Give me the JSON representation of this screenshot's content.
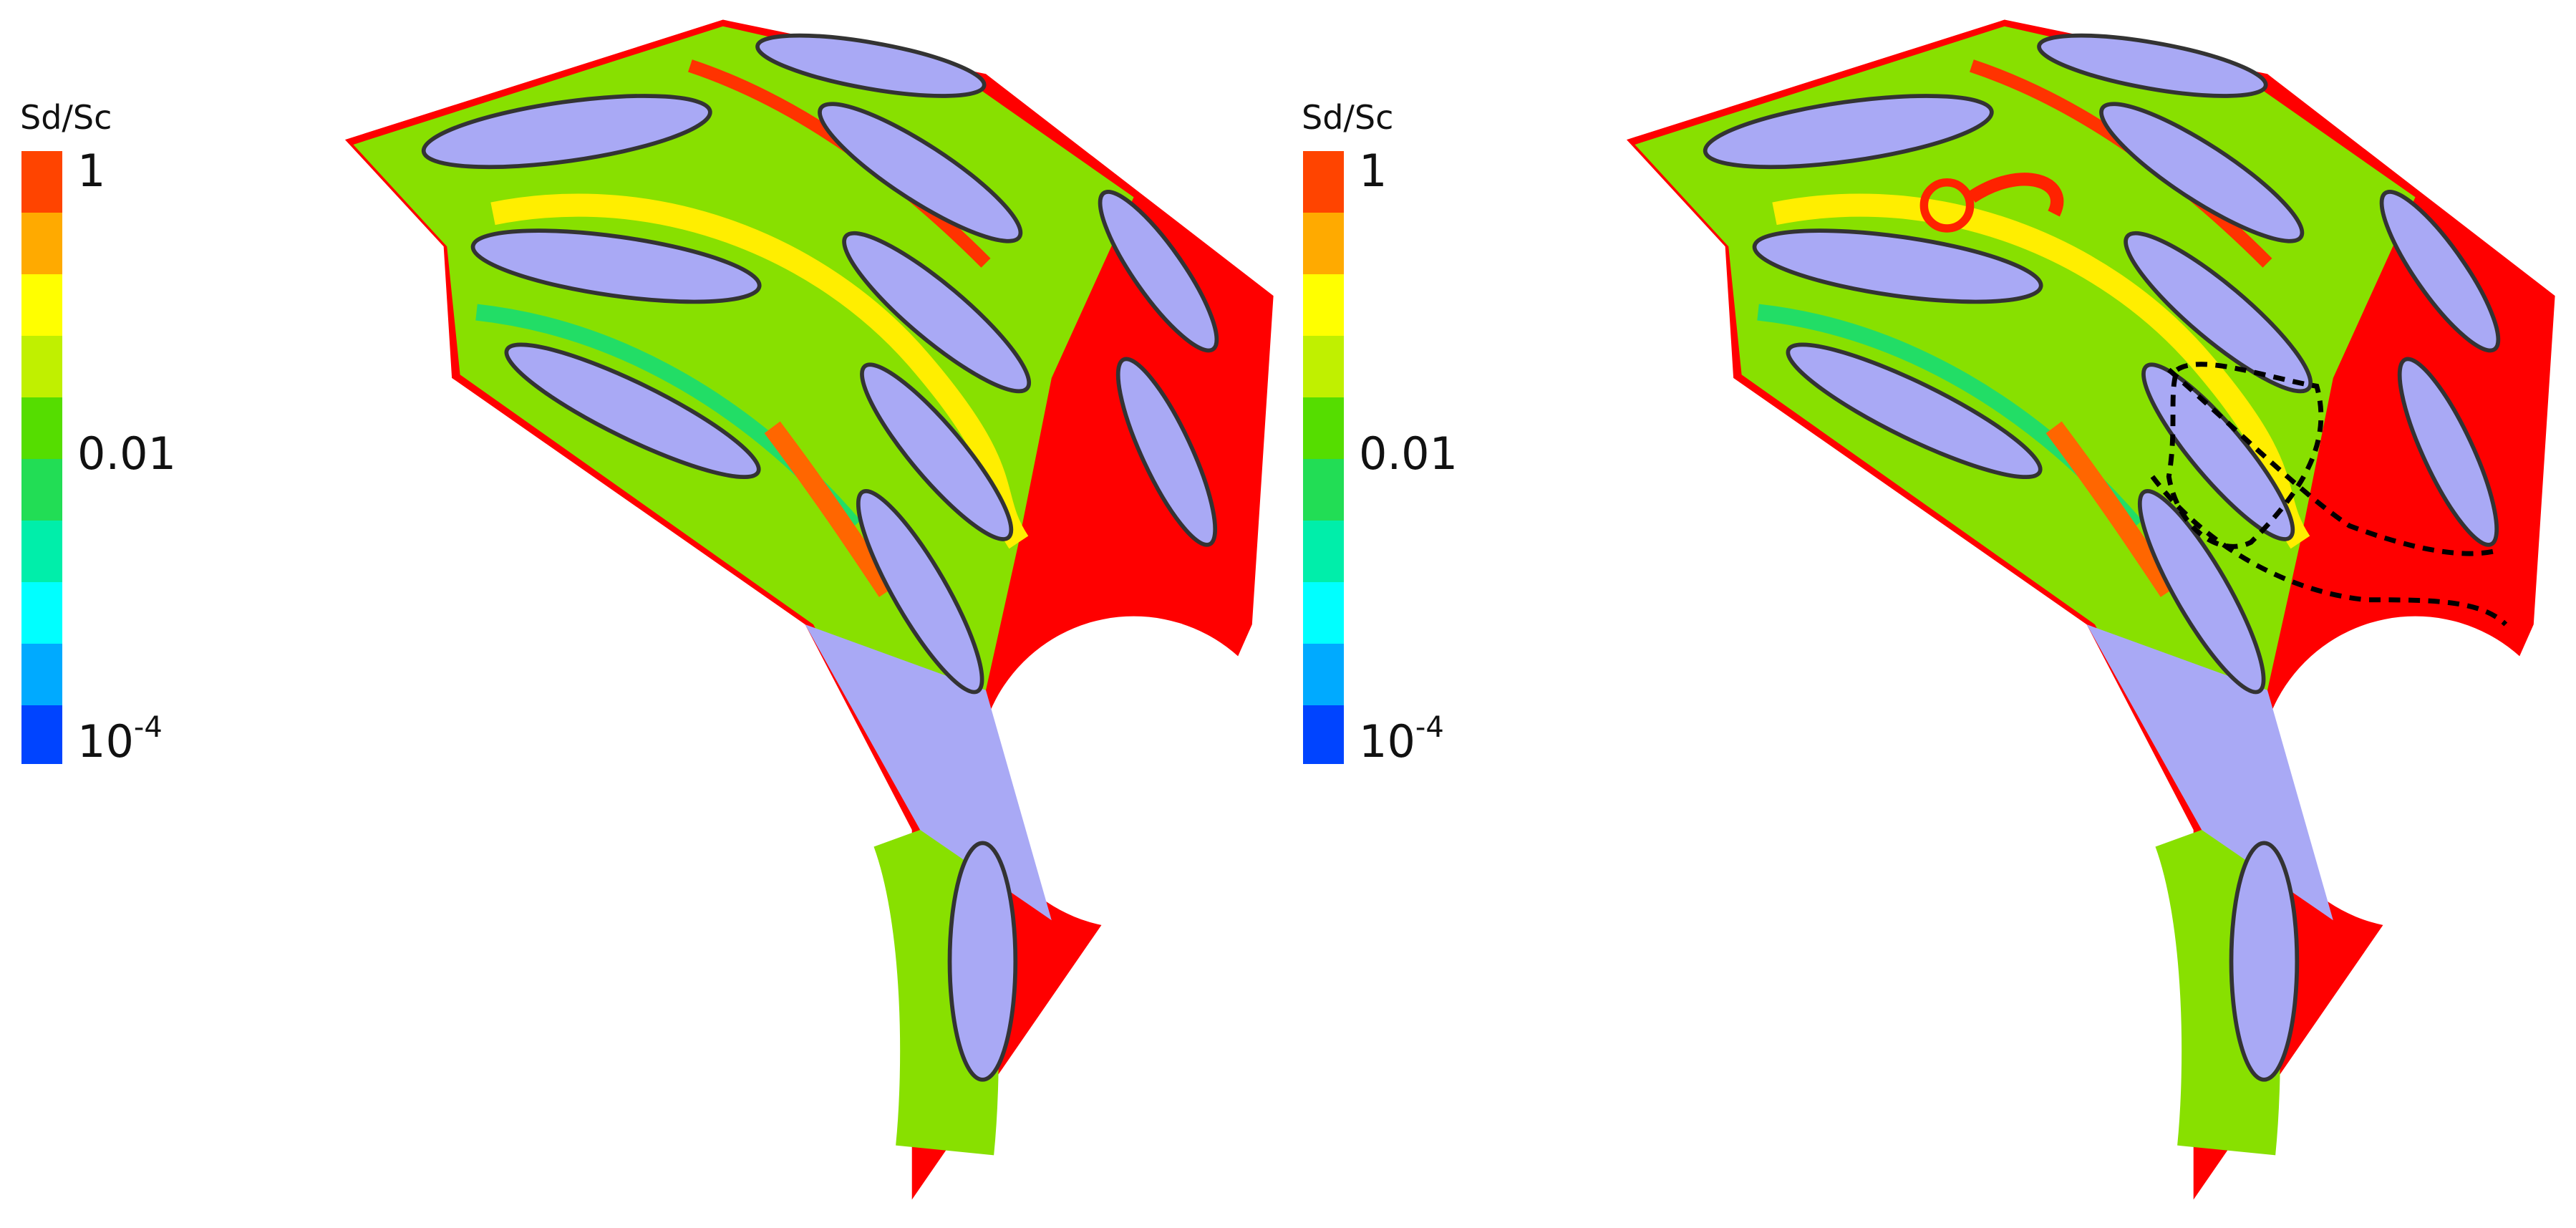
{
  "panels": [
    {
      "colorbar": {
        "title": "Sd/Sc",
        "top": "1",
        "middle": "0.01",
        "bottom": {
          "base": "10",
          "exponent": "-4"
        }
      }
    },
    {
      "colorbar": {
        "title": "Sd/Sc",
        "top": "1",
        "middle": "0.01",
        "bottom": {
          "base": "10",
          "exponent": "-4"
        }
      }
    }
  ]
}
